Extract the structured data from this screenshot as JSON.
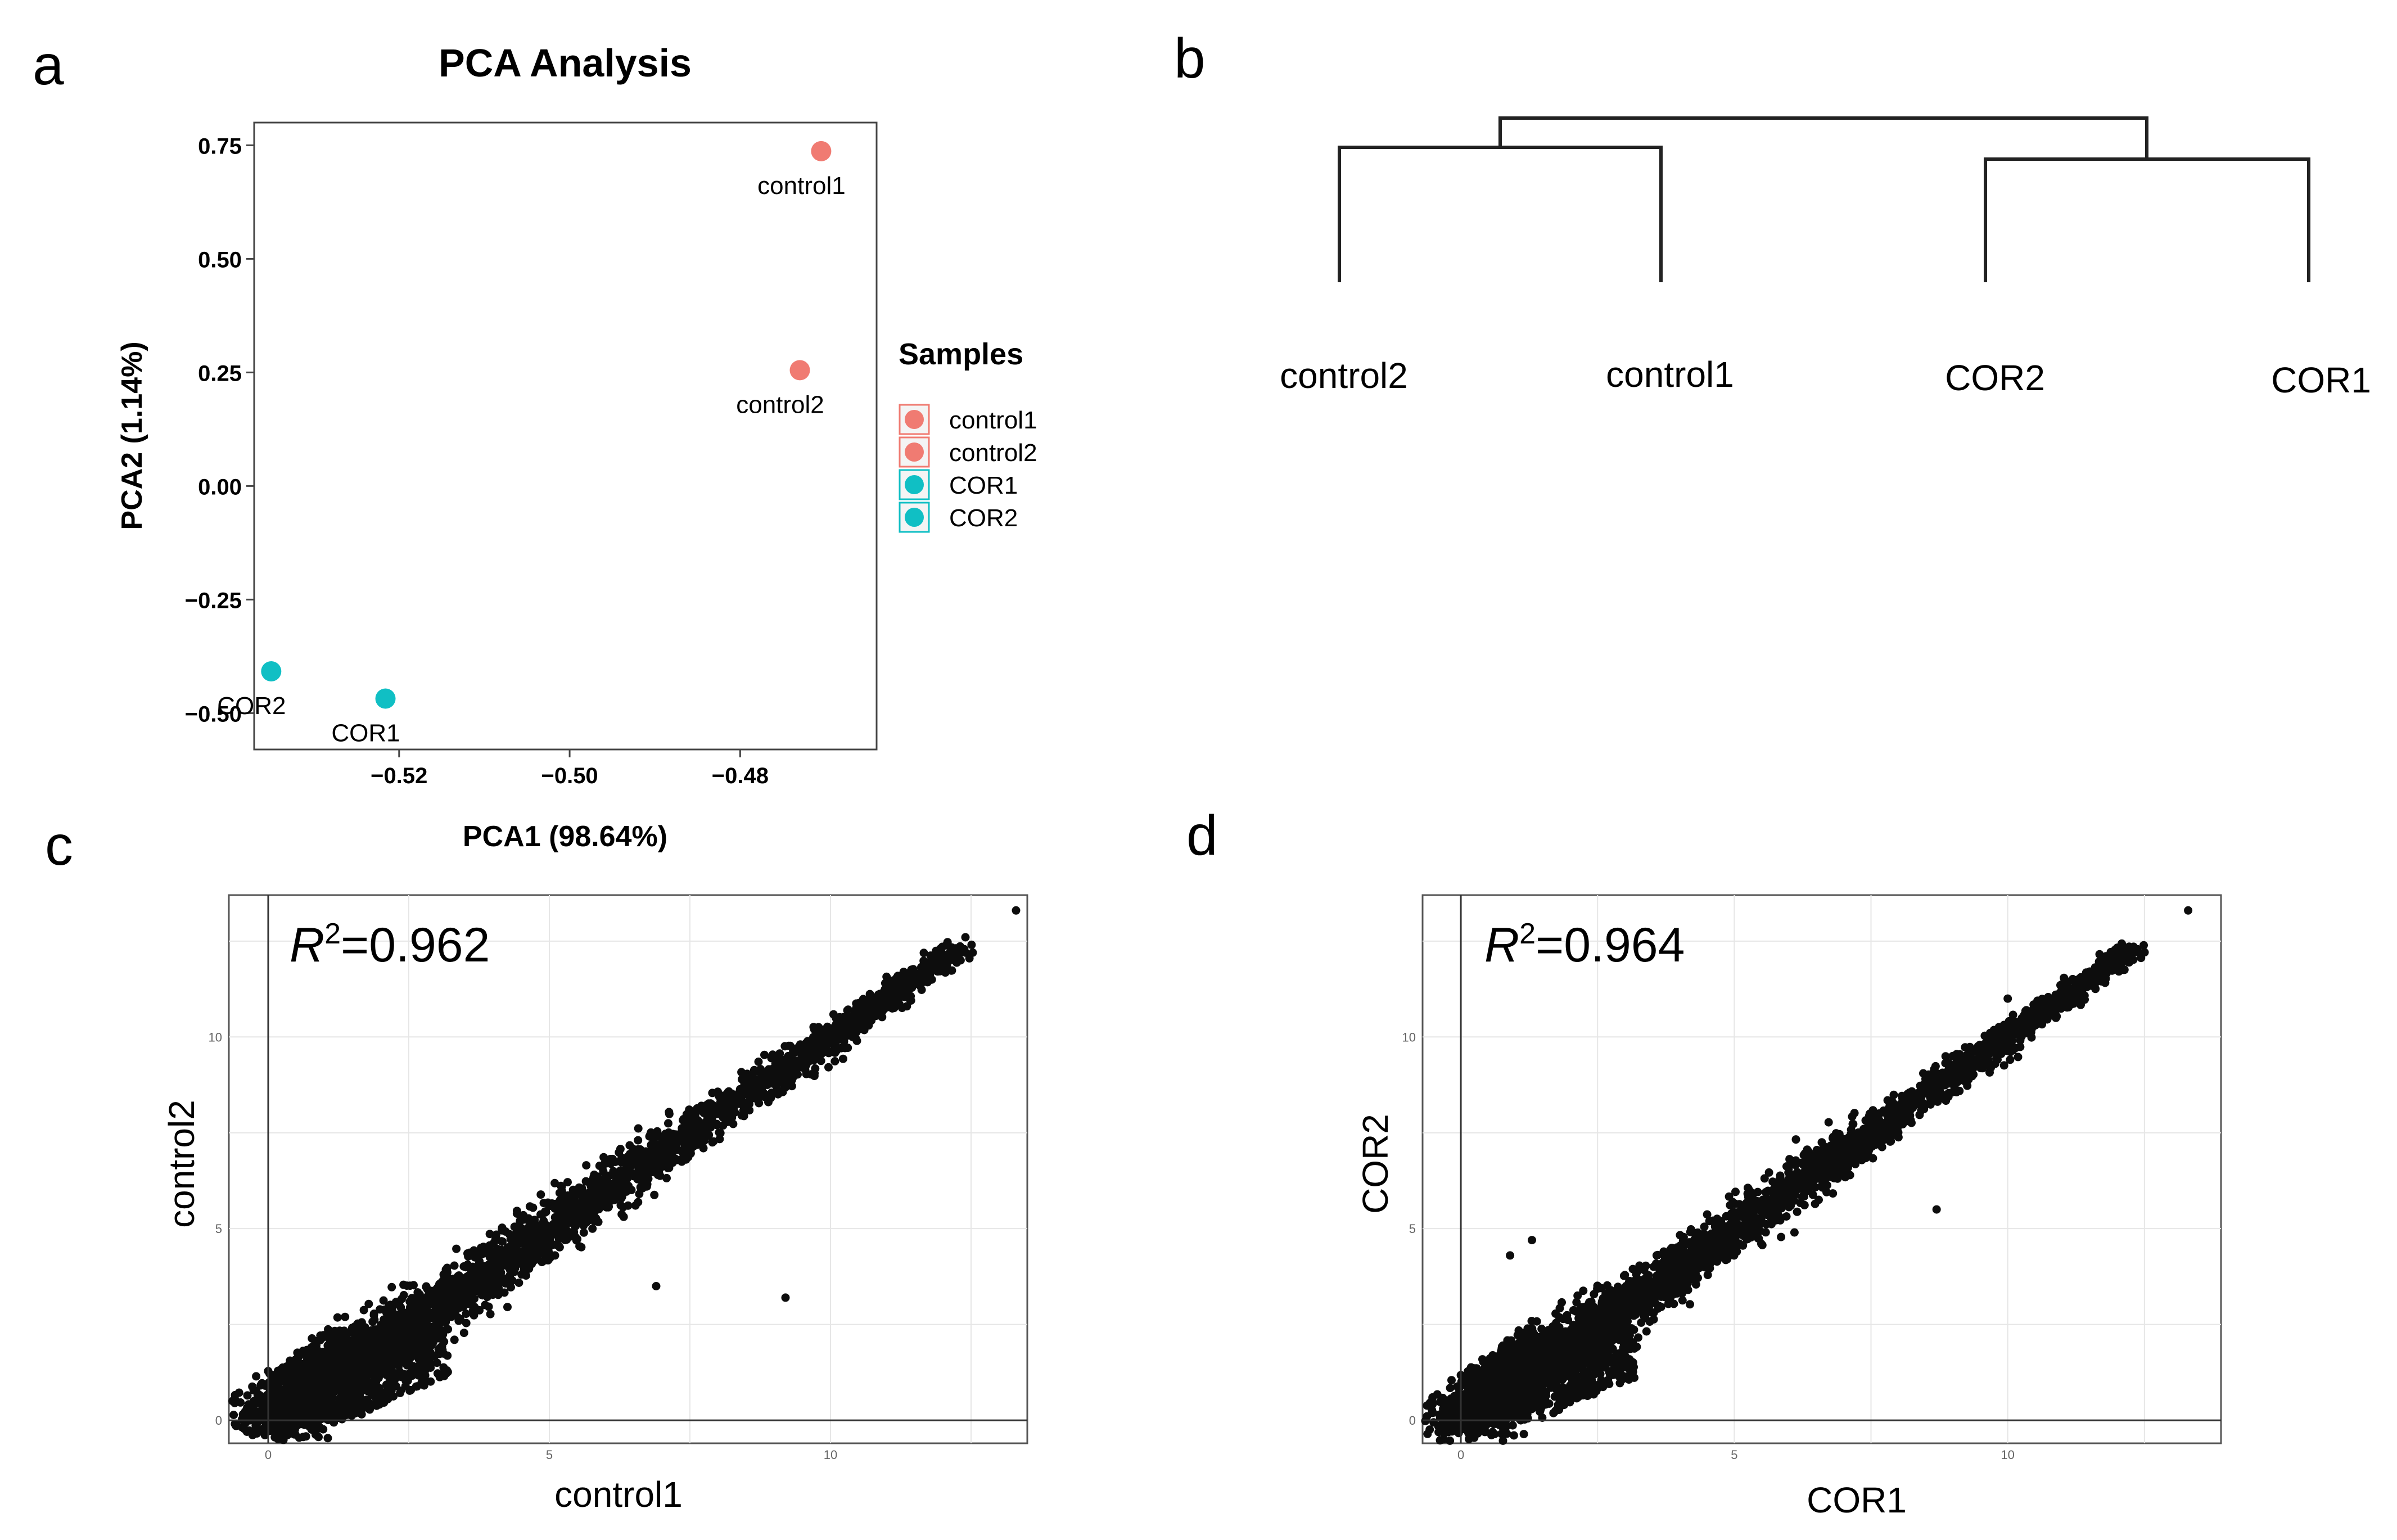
{
  "panels": {
    "a": {
      "letter": "a",
      "chart_data": {
        "type": "scatter",
        "title": "PCA Analysis",
        "xlabel": "PCA1 (98.64%)",
        "ylabel": "PCA2 (1.14%)",
        "xlim": [
          -0.537,
          -0.464
        ],
        "ylim": [
          -0.58,
          0.8
        ],
        "xticks": [
          -0.52,
          -0.5,
          -0.48
        ],
        "xtick_labels": [
          "−0.52",
          "−0.50",
          "−0.48"
        ],
        "yticks": [
          0.75,
          0.5,
          0.25,
          0.0,
          -0.25,
          -0.5
        ],
        "ytick_labels": [
          "0.75",
          "0.50",
          "0.25",
          "0.00",
          "−0.25",
          "−0.50"
        ],
        "points": [
          {
            "name": "control1",
            "x": -0.4705,
            "y": 0.737,
            "group": "control1"
          },
          {
            "name": "control2",
            "x": -0.473,
            "y": 0.255,
            "group": "control2"
          },
          {
            "name": "COR1",
            "x": -0.5216,
            "y": -0.468,
            "group": "COR1"
          },
          {
            "name": "COR2",
            "x": -0.535,
            "y": -0.408,
            "group": "COR2"
          }
        ],
        "legend": {
          "title": "Samples",
          "position": "right",
          "entries": [
            {
              "label": "control1",
              "color": "#f07b72"
            },
            {
              "label": "control2",
              "color": "#f07b72"
            },
            {
              "label": "COR1",
              "color": "#10bfc4"
            },
            {
              "label": "COR2",
              "color": "#10bfc4"
            }
          ]
        },
        "colors": {
          "control": "#f07b72",
          "COR": "#10bfc4"
        }
      }
    },
    "b": {
      "letter": "b",
      "chart_data": {
        "type": "dendrogram",
        "leaves": [
          "control2",
          "control1",
          "COR2",
          "COR1"
        ],
        "merges": [
          {
            "left": "control2",
            "right": "control1",
            "height": 0.82
          },
          {
            "left": "COR2",
            "right": "COR1",
            "height": 0.76
          },
          {
            "left": "cluster-control",
            "right": "cluster-COR",
            "height": 1.0
          }
        ]
      }
    },
    "c": {
      "letter": "c",
      "chart_data": {
        "type": "scatter",
        "xlabel": "control1",
        "ylabel": "control2",
        "annotation_var": "R",
        "annotation_sup": "2",
        "annotation_value": "=0.962",
        "r_squared": 0.962,
        "xlim": [
          -0.7,
          13.5
        ],
        "ylim": [
          -0.6,
          13.7
        ],
        "xticks": [
          0,
          5,
          10
        ],
        "xtick_labels": [
          "0",
          "5",
          "10"
        ],
        "yticks": [
          0,
          5,
          10
        ],
        "ytick_labels": [
          "0",
          "5",
          "10"
        ],
        "grid": true,
        "max_point": [
          13.3,
          13.3
        ],
        "outliers": [
          [
            9.2,
            3.2
          ],
          [
            6.9,
            3.5
          ],
          [
            5.1,
            4.3
          ],
          [
            6.4,
            5.6
          ],
          [
            12.4,
            12.6
          ],
          [
            11.4,
            11.0
          ]
        ]
      }
    },
    "d": {
      "letter": "d",
      "chart_data": {
        "type": "scatter",
        "xlabel": "COR1",
        "ylabel": "COR2",
        "annotation_var": "R",
        "annotation_sup": "2",
        "annotation_value": "=0.964",
        "r_squared": 0.964,
        "xlim": [
          -0.7,
          13.9
        ],
        "ylim": [
          -0.6,
          13.7
        ],
        "xticks": [
          0,
          5,
          10
        ],
        "xtick_labels": [
          "0",
          "5",
          "10"
        ],
        "yticks": [
          0,
          5,
          10
        ],
        "ytick_labels": [
          "0",
          "5",
          "10"
        ],
        "grid": true,
        "max_point": [
          13.3,
          13.3
        ],
        "outliers": [
          [
            8.7,
            5.5
          ],
          [
            6.1,
            4.9
          ],
          [
            1.3,
            4.7
          ],
          [
            0.9,
            4.3
          ],
          [
            10.0,
            11.0
          ],
          [
            11.8,
            12.1
          ]
        ]
      }
    }
  }
}
